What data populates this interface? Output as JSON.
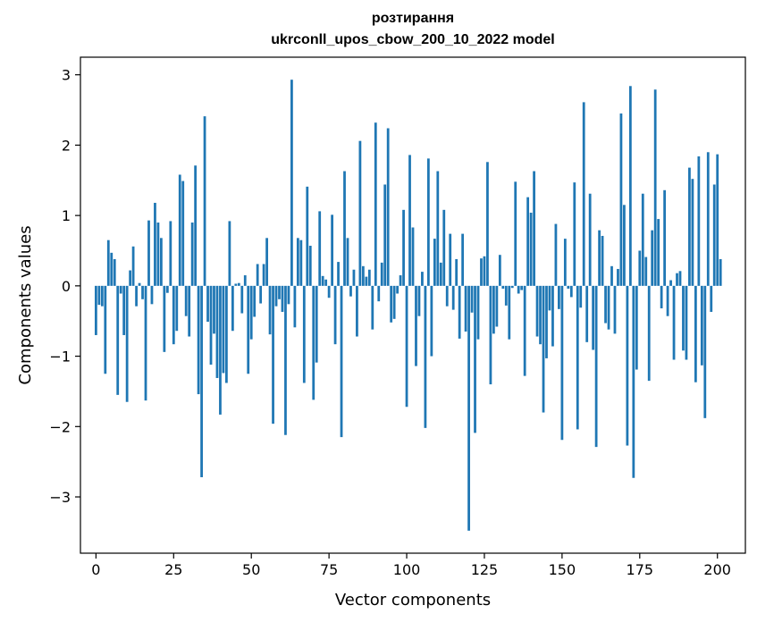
{
  "chart_data": {
    "type": "bar",
    "title_line1": "розтирання",
    "title_line2": "ukrconll_upos_cbow_200_10_2022 model",
    "xlabel": "Vector components",
    "ylabel": "Components values",
    "xlim": [
      -5,
      209
    ],
    "ylim": [
      -3.8,
      3.25
    ],
    "x_ticks": [
      0,
      25,
      50,
      75,
      100,
      125,
      150,
      175,
      200
    ],
    "y_ticks": [
      3,
      2,
      1,
      0,
      -1,
      -2,
      -3
    ],
    "y_tick_labels": [
      "3",
      "2",
      "1",
      "0",
      "−1",
      "−2",
      "−3"
    ],
    "grid": false,
    "bar_color": "#1f77b4",
    "values": [
      -0.7,
      -0.27,
      -0.29,
      -1.25,
      0.65,
      0.47,
      0.38,
      -1.55,
      -0.11,
      -0.7,
      -1.65,
      0.22,
      0.56,
      -0.29,
      0.04,
      -0.19,
      -1.63,
      0.93,
      -0.26,
      1.18,
      0.9,
      0.68,
      -0.94,
      -0.1,
      0.92,
      -0.83,
      -0.64,
      1.58,
      1.49,
      -0.43,
      -0.72,
      0.9,
      1.71,
      -1.54,
      -2.72,
      2.41,
      -0.51,
      -1.12,
      -0.68,
      -1.31,
      -1.83,
      -1.24,
      -1.38,
      0.92,
      -0.64,
      0.03,
      0.04,
      -0.39,
      0.15,
      -1.25,
      -0.76,
      -0.44,
      0.31,
      -0.25,
      0.31,
      0.68,
      -0.69,
      -1.96,
      -0.29,
      -0.19,
      -0.37,
      -2.12,
      -0.26,
      2.93,
      -0.59,
      0.68,
      0.65,
      -1.38,
      1.41,
      0.57,
      -1.62,
      -1.09,
      1.06,
      0.14,
      0.09,
      -0.17,
      1.01,
      -0.83,
      0.34,
      -2.15,
      1.63,
      0.68,
      -0.15,
      0.23,
      -0.72,
      2.06,
      0.28,
      0.13,
      0.23,
      -0.62,
      2.32,
      -0.22,
      0.33,
      1.44,
      2.24,
      -0.52,
      -0.47,
      -0.11,
      0.15,
      1.08,
      -1.72,
      1.86,
      0.83,
      -1.14,
      -0.43,
      0.2,
      -2.02,
      1.81,
      -1.0,
      0.67,
      1.63,
      0.33,
      1.08,
      -0.29,
      0.74,
      -0.34,
      0.38,
      -0.75,
      0.74,
      -0.65,
      -3.48,
      -0.38,
      -2.09,
      -0.76,
      0.39,
      0.42,
      1.76,
      -1.4,
      -0.68,
      -0.58,
      0.44,
      -0.04,
      -0.28,
      -0.76,
      -0.03,
      1.48,
      -0.11,
      -0.06,
      -1.28,
      1.26,
      1.04,
      1.63,
      -0.72,
      -0.83,
      -1.8,
      -1.03,
      -0.35,
      -0.86,
      0.88,
      -0.33,
      -2.19,
      0.67,
      -0.04,
      -0.16,
      1.47,
      -2.04,
      -0.31,
      2.61,
      -0.8,
      1.31,
      -0.91,
      -2.29,
      0.79,
      0.71,
      -0.53,
      -0.62,
      0.28,
      -0.68,
      0.24,
      2.45,
      1.15,
      -2.27,
      2.84,
      -2.73,
      -1.19,
      0.5,
      1.31,
      0.41,
      -1.35,
      0.79,
      2.79,
      0.95,
      -0.32,
      1.36,
      -0.43,
      0.08,
      -1.05,
      0.18,
      0.21,
      -0.92,
      -1.05,
      1.68,
      1.52,
      -1.37,
      1.84,
      -1.13,
      -1.88,
      1.9,
      -0.37,
      1.44,
      1.87,
      0.38
    ]
  }
}
